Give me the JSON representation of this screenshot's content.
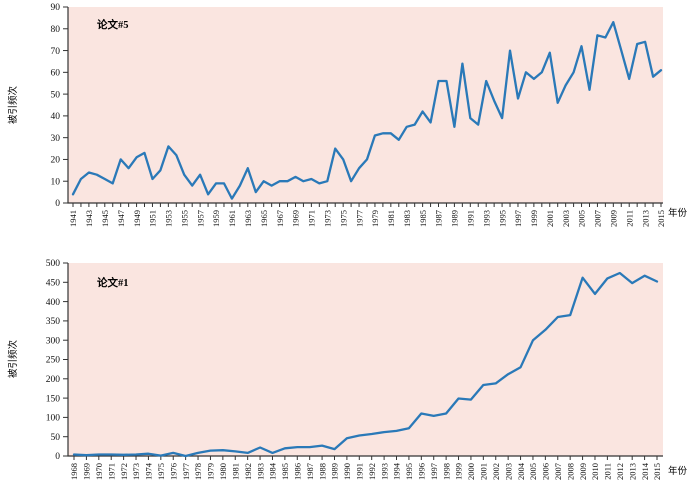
{
  "figure": {
    "xlabel": "年份",
    "ylabel": "被引频次"
  },
  "colors": {
    "line": "#2a79b8",
    "plot_bg": "#fae5e0",
    "axis": "#333333",
    "text": "#111111"
  },
  "chart_data": [
    {
      "type": "line",
      "title": "论文#5",
      "xlabel": "年份",
      "ylabel": "被引频次",
      "ylim": [
        0,
        90
      ],
      "ytick_step": 10,
      "x_label_every": 2,
      "legend": "none",
      "grid": false,
      "x": [
        1941,
        1942,
        1943,
        1944,
        1945,
        1946,
        1947,
        1948,
        1949,
        1950,
        1951,
        1952,
        1953,
        1954,
        1955,
        1956,
        1957,
        1958,
        1959,
        1960,
        1961,
        1962,
        1963,
        1964,
        1965,
        1966,
        1967,
        1968,
        1969,
        1970,
        1971,
        1972,
        1973,
        1974,
        1975,
        1976,
        1977,
        1978,
        1979,
        1980,
        1981,
        1982,
        1983,
        1984,
        1985,
        1986,
        1987,
        1988,
        1989,
        1990,
        1991,
        1992,
        1993,
        1994,
        1995,
        1996,
        1997,
        1998,
        1999,
        2000,
        2001,
        2002,
        2003,
        2004,
        2005,
        2006,
        2007,
        2008,
        2009,
        2010,
        2011,
        2012,
        2013,
        2014,
        2015
      ],
      "values": [
        4,
        11,
        14,
        13,
        11,
        9,
        20,
        16,
        21,
        23,
        11,
        15,
        26,
        22,
        13,
        8,
        13,
        4,
        9,
        9,
        2,
        8,
        16,
        5,
        10,
        8,
        10,
        10,
        12,
        10,
        11,
        9,
        10,
        25,
        20,
        10,
        16,
        20,
        31,
        32,
        32,
        29,
        35,
        36,
        42,
        37,
        56,
        56,
        35,
        64,
        39,
        36,
        56,
        47,
        39,
        70,
        48,
        60,
        57,
        60,
        69,
        46,
        54,
        60,
        72,
        52,
        77,
        76,
        83,
        70,
        57,
        73,
        74,
        58,
        61
      ]
    },
    {
      "type": "line",
      "title": "论文#1",
      "xlabel": "年份",
      "ylabel": "被引频次",
      "ylim": [
        0,
        500
      ],
      "ytick_step": 50,
      "x_label_every": 1,
      "legend": "none",
      "grid": false,
      "x": [
        1968,
        1969,
        1970,
        1971,
        1972,
        1973,
        1974,
        1975,
        1976,
        1977,
        1978,
        1979,
        1980,
        1981,
        1982,
        1983,
        1984,
        1985,
        1986,
        1987,
        1988,
        1989,
        1990,
        1991,
        1992,
        1993,
        1994,
        1995,
        1996,
        1997,
        1998,
        1999,
        2000,
        2001,
        2002,
        2003,
        2004,
        2005,
        2006,
        2007,
        2008,
        2009,
        2010,
        2011,
        2012,
        2013,
        2014,
        2015
      ],
      "values": [
        4,
        2,
        4,
        4,
        3,
        4,
        6,
        1,
        8,
        0,
        8,
        14,
        15,
        12,
        8,
        22,
        8,
        20,
        23,
        23,
        27,
        18,
        46,
        53,
        57,
        62,
        65,
        72,
        110,
        104,
        110,
        149,
        146,
        184,
        188,
        212,
        230,
        300,
        327,
        360,
        365,
        462,
        420,
        460,
        474,
        448,
        467,
        452
      ]
    }
  ]
}
